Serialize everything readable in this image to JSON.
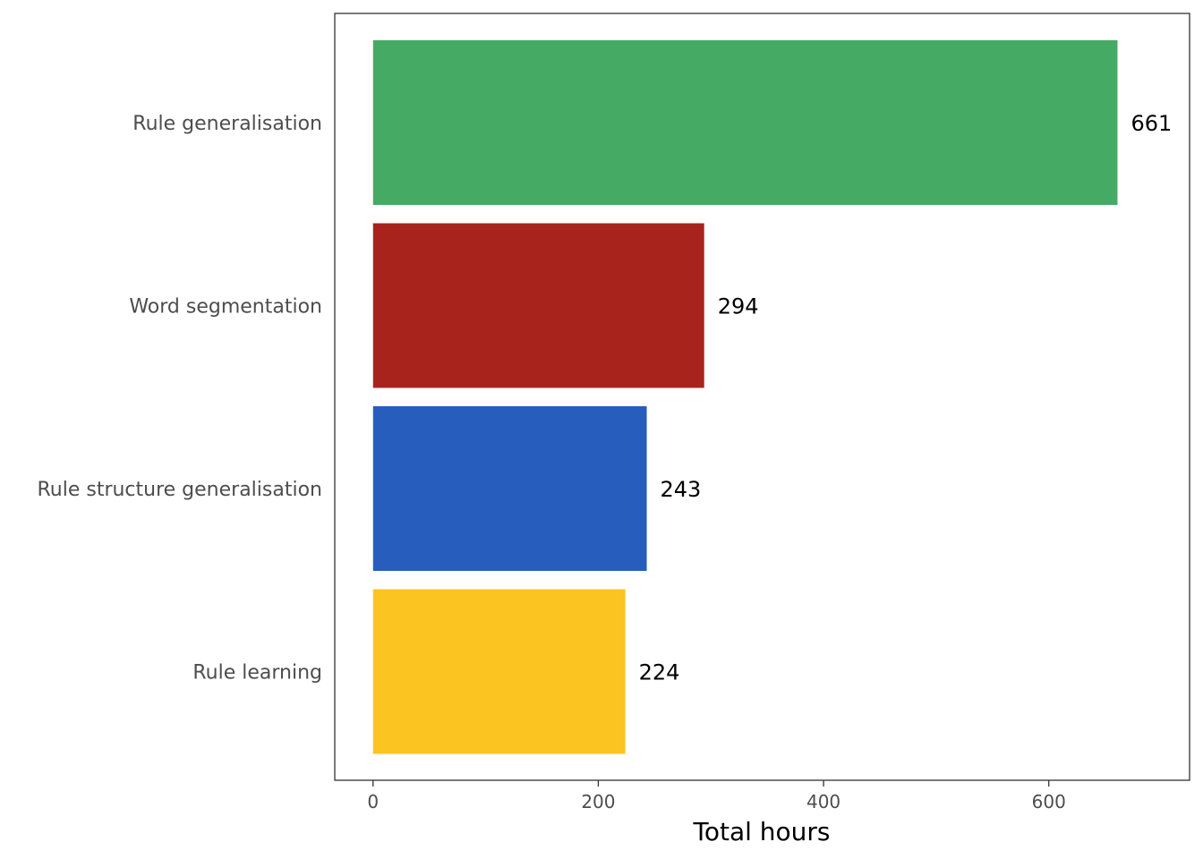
{
  "chart_data": {
    "type": "bar",
    "orientation": "horizontal",
    "categories": [
      "Rule generalisation",
      "Word segmentation",
      "Rule structure generalisation",
      "Rule learning"
    ],
    "values": [
      661,
      294,
      243,
      224
    ],
    "value_labels": [
      "661",
      "294",
      "243",
      "224"
    ],
    "colors": [
      "#45AA63",
      "#A8231C",
      "#275DBC",
      "#FCC421"
    ],
    "title": "",
    "xlabel": "Total hours",
    "ylabel": "",
    "xlim": [
      -34,
      725
    ],
    "xticks": [
      0,
      200,
      400,
      600
    ],
    "xtick_labels": [
      "0",
      "200",
      "400",
      "600"
    ],
    "grid": false,
    "legend": "none"
  }
}
